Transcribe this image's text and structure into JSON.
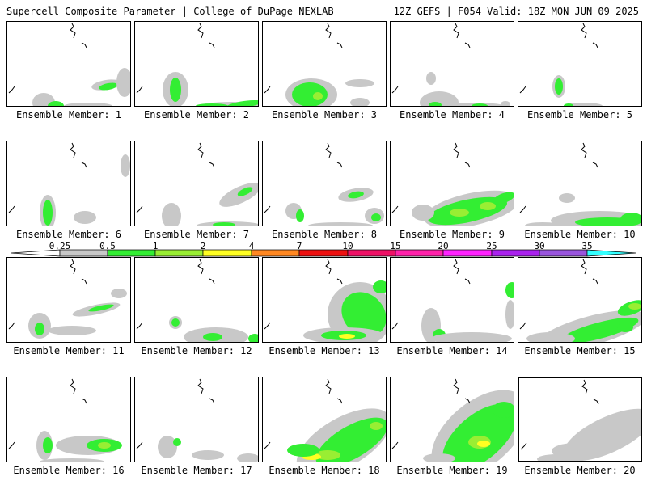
{
  "header": {
    "title": "Supercell Composite Parameter | College of DuPage NEXLAB",
    "run_info": "12Z GEFS | F054 Valid: 18Z MON JUN 09 2025"
  },
  "panels": [
    {
      "label": "Ensemble Member: 1",
      "selected": false
    },
    {
      "label": "Ensemble Member: 2",
      "selected": false
    },
    {
      "label": "Ensemble Member: 3",
      "selected": false
    },
    {
      "label": "Ensemble Member: 4",
      "selected": false
    },
    {
      "label": "Ensemble Member: 5",
      "selected": false
    },
    {
      "label": "Ensemble Member: 6",
      "selected": false
    },
    {
      "label": "Ensemble Member: 7",
      "selected": false
    },
    {
      "label": "Ensemble Member: 8",
      "selected": false
    },
    {
      "label": "Ensemble Member: 9",
      "selected": false
    },
    {
      "label": "Ensemble Member: 10",
      "selected": false
    },
    {
      "label": "Ensemble Member: 11",
      "selected": false
    },
    {
      "label": "Ensemble Member: 12",
      "selected": false
    },
    {
      "label": "Ensemble Member: 13",
      "selected": false
    },
    {
      "label": "Ensemble Member: 14",
      "selected": false
    },
    {
      "label": "Ensemble Member: 15",
      "selected": false
    },
    {
      "label": "Ensemble Member: 16",
      "selected": false
    },
    {
      "label": "Ensemble Member: 17",
      "selected": false
    },
    {
      "label": "Ensemble Member: 18",
      "selected": false
    },
    {
      "label": "Ensemble Member: 19",
      "selected": false
    },
    {
      "label": "Ensemble Member: 20",
      "selected": true
    }
  ],
  "legend": {
    "ticks": [
      "0.25",
      "0.5",
      "1",
      "2",
      "4",
      "7",
      "10",
      "15",
      "20",
      "25",
      "30",
      "35"
    ],
    "colors": [
      "#c8c8c8",
      "#33ee33",
      "#99ee33",
      "#ffff22",
      "#ff8822",
      "#ee1111",
      "#ee1166",
      "#ff22aa",
      "#ff22ff",
      "#aa22ee",
      "#9955dd",
      "#33ffff"
    ]
  },
  "colors": {
    "gray": "#c8c8c8",
    "green": "#33ee33",
    "lightgreen": "#99ee33",
    "yellow": "#ffff22"
  }
}
